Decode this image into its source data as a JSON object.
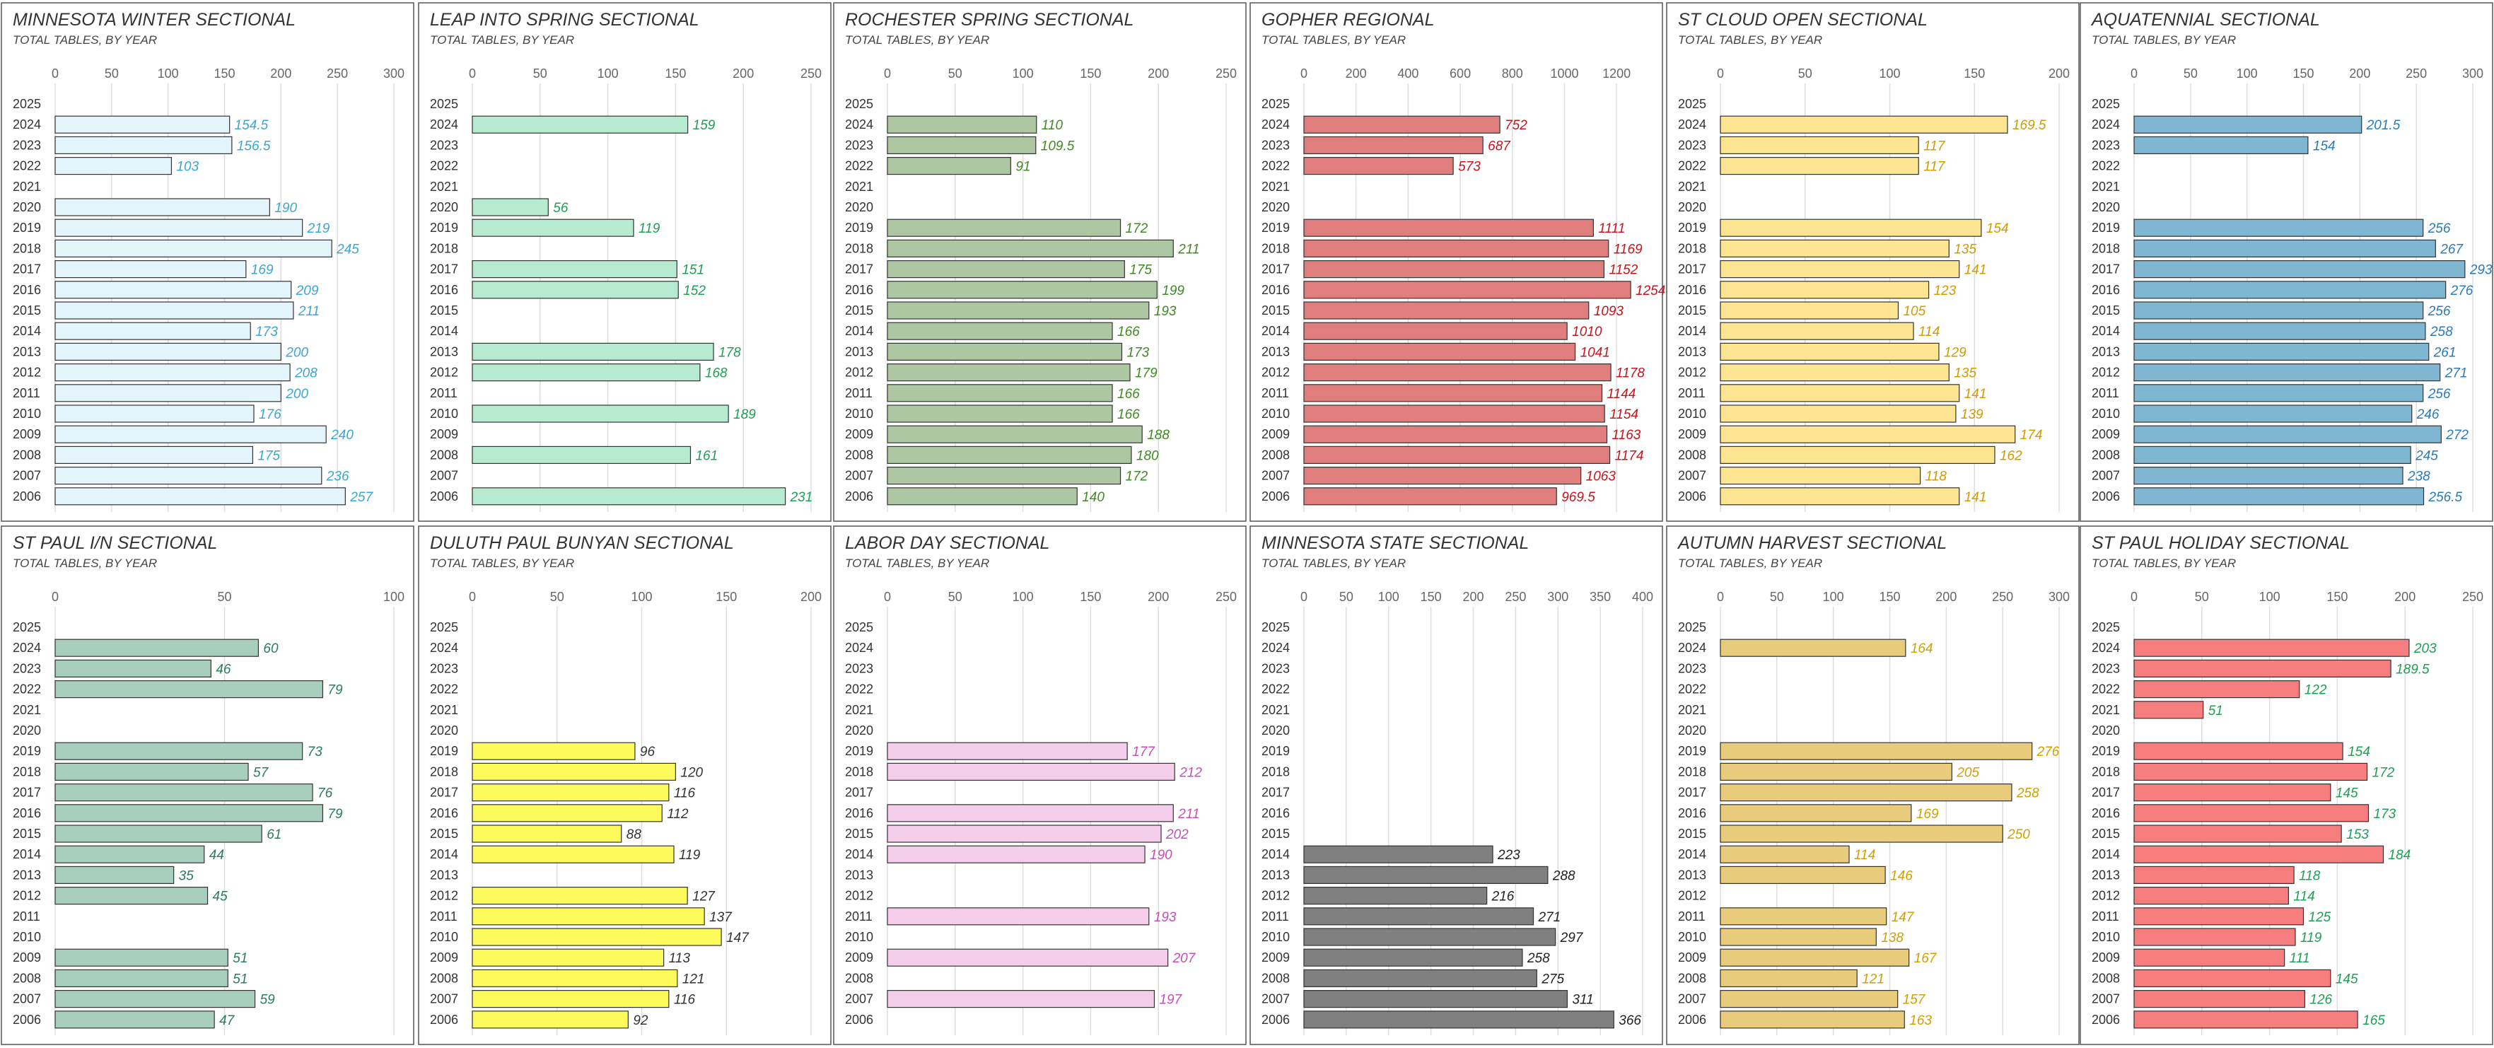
{
  "years": [
    "2025",
    "2024",
    "2023",
    "2022",
    "2021",
    "2020",
    "2019",
    "2018",
    "2017",
    "2016",
    "2015",
    "2014",
    "2013",
    "2012",
    "2011",
    "2010",
    "2009",
    "2008",
    "2007",
    "2006"
  ],
  "chart_data": [
    {
      "type": "bar",
      "title": "MINNESOTA WINTER SECTIONAL",
      "subtitle": "TOTAL TABLES, BY YEAR",
      "xlim": [
        0,
        300
      ],
      "ticks": [
        0,
        50,
        100,
        150,
        200,
        250,
        300
      ],
      "fill": "#e3f4fa",
      "label_color": "#3aa6d6",
      "values": [
        null,
        154.5,
        156.5,
        103,
        null,
        190,
        219,
        245,
        169,
        209,
        211,
        173,
        200,
        208,
        200,
        176,
        240,
        175,
        236,
        257
      ]
    },
    {
      "type": "bar",
      "title": "LEAP INTO SPRING SECTIONAL",
      "subtitle": "TOTAL TABLES, BY YEAR",
      "xlim": [
        0,
        250
      ],
      "ticks": [
        0,
        50,
        100,
        150,
        200,
        250
      ],
      "fill": "#b6ebcf",
      "label_color": "#1f9e55",
      "values": [
        null,
        159,
        null,
        null,
        null,
        56,
        119,
        null,
        151,
        152,
        null,
        null,
        178,
        168,
        null,
        189,
        null,
        161,
        null,
        231
      ]
    },
    {
      "type": "bar",
      "title": "ROCHESTER SPRING SECTIONAL",
      "subtitle": "TOTAL TABLES, BY YEAR",
      "xlim": [
        0,
        250
      ],
      "ticks": [
        0,
        50,
        100,
        150,
        200,
        250
      ],
      "fill": "#adc7a2",
      "label_color": "#3f8a24",
      "values": [
        null,
        110,
        109.5,
        91,
        null,
        null,
        172,
        211,
        175,
        199,
        193,
        166,
        173,
        179,
        166,
        166,
        188,
        180,
        172,
        140
      ]
    },
    {
      "type": "bar",
      "title": "GOPHER REGIONAL",
      "subtitle": "TOTAL TABLES, BY YEAR",
      "xlim": [
        0,
        1300
      ],
      "ticks": [
        0,
        200,
        400,
        600,
        800,
        1000,
        1200
      ],
      "fill": "#e07d7d",
      "label_color": "#c4161c",
      "values": [
        null,
        752,
        687,
        573,
        null,
        null,
        1111,
        1169,
        1152,
        1254,
        1093,
        1010,
        1041,
        1178,
        1144,
        1154,
        1163,
        1174,
        1063,
        969.5
      ]
    },
    {
      "type": "bar",
      "title": "ST CLOUD OPEN SECTIONAL",
      "subtitle": "TOTAL TABLES, BY YEAR",
      "xlim": [
        0,
        200
      ],
      "ticks": [
        0,
        50,
        100,
        150,
        200
      ],
      "fill": "#fde591",
      "label_color": "#d29a00",
      "values": [
        null,
        169.5,
        117,
        117,
        null,
        null,
        154,
        135,
        141,
        123,
        105,
        114,
        129,
        135,
        141,
        139,
        174,
        162,
        118,
        141
      ]
    },
    {
      "type": "bar",
      "title": "AQUATENNIAL SECTIONAL",
      "subtitle": "TOTAL TABLES, BY YEAR",
      "xlim": [
        0,
        300
      ],
      "ticks": [
        0,
        50,
        100,
        150,
        200,
        250,
        300
      ],
      "fill": "#7fb6d2",
      "label_color": "#2b7ab8",
      "values": [
        null,
        201.5,
        154,
        null,
        null,
        null,
        256,
        267,
        293,
        276,
        256,
        258,
        261,
        271,
        256,
        246,
        272,
        245,
        238,
        256.5
      ]
    },
    {
      "type": "bar",
      "title": "ST PAUL I/N SECTIONAL",
      "subtitle": "TOTAL TABLES, BY YEAR",
      "xlim": [
        0,
        100
      ],
      "ticks": [
        0,
        50,
        100
      ],
      "fill": "#a8cfbe",
      "label_color": "#2a7d57",
      "values": [
        null,
        60,
        46,
        79,
        null,
        null,
        73,
        57,
        76,
        79,
        61,
        44,
        35,
        45,
        null,
        null,
        51,
        51,
        59,
        47
      ]
    },
    {
      "type": "bar",
      "title": "DULUTH PAUL BUNYAN SECTIONAL",
      "subtitle": "TOTAL TABLES, BY YEAR",
      "xlim": [
        0,
        200
      ],
      "ticks": [
        0,
        50,
        100,
        150,
        200
      ],
      "fill": "#fdfa5c",
      "label_color": "#333333",
      "values": [
        null,
        null,
        null,
        null,
        null,
        null,
        96,
        120,
        116,
        112,
        88,
        119,
        null,
        127,
        137,
        147,
        113,
        121,
        116,
        92
      ]
    },
    {
      "type": "bar",
      "title": "LABOR DAY SECTIONAL",
      "subtitle": "TOTAL TABLES, BY YEAR",
      "xlim": [
        0,
        250
      ],
      "ticks": [
        0,
        50,
        100,
        150,
        200,
        250
      ],
      "fill": "#f4cdea",
      "label_color": "#c350b9",
      "values": [
        null,
        null,
        null,
        null,
        null,
        null,
        177,
        212,
        null,
        211,
        202,
        190,
        null,
        null,
        193,
        null,
        207,
        null,
        197,
        null
      ]
    },
    {
      "type": "bar",
      "title": "MINNESOTA STATE SECTIONAL",
      "subtitle": "TOTAL TABLES, BY YEAR",
      "xlim": [
        0,
        400
      ],
      "ticks": [
        0,
        50,
        100,
        150,
        200,
        250,
        300,
        350,
        400
      ],
      "fill": "#808080",
      "label_color": "#222222",
      "values": [
        null,
        null,
        null,
        null,
        null,
        null,
        null,
        null,
        null,
        null,
        null,
        223,
        288,
        216,
        271,
        297,
        258,
        275,
        311,
        366
      ]
    },
    {
      "type": "bar",
      "title": "AUTUMN HARVEST SECTIONAL",
      "subtitle": "TOTAL TABLES, BY YEAR",
      "xlim": [
        0,
        300
      ],
      "ticks": [
        0,
        50,
        100,
        150,
        200,
        250,
        300
      ],
      "fill": "#e8cc7c",
      "label_color": "#d1a000",
      "values": [
        null,
        164,
        null,
        null,
        null,
        null,
        276,
        205,
        258,
        169,
        250,
        114,
        146,
        null,
        147,
        138,
        167,
        121,
        157,
        163
      ]
    },
    {
      "type": "bar",
      "title": "ST PAUL HOLIDAY SECTIONAL",
      "subtitle": "TOTAL TABLES, BY YEAR",
      "xlim": [
        0,
        250
      ],
      "ticks": [
        0,
        50,
        100,
        150,
        200,
        250
      ],
      "fill": "#f67e7e",
      "label_color": "#1f9e55",
      "values": [
        null,
        203,
        189.5,
        122,
        51,
        null,
        154,
        172,
        145,
        173,
        153,
        184,
        118,
        114,
        125,
        119,
        111,
        145,
        126,
        165
      ]
    }
  ]
}
